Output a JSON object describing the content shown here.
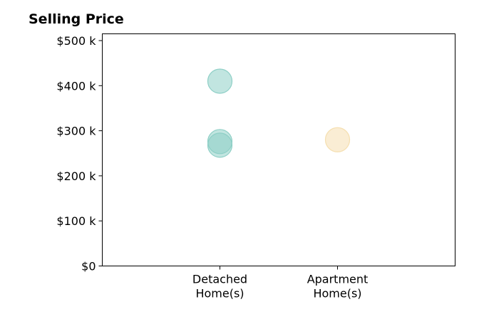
{
  "chart_data": {
    "type": "scatter",
    "title": "Selling Price",
    "categories": [
      "Detached Home(s)",
      "Apartment Home(s)"
    ],
    "category_label_lines": [
      [
        "Detached",
        "Home(s)"
      ],
      [
        "Apartment",
        "Home(s)"
      ]
    ],
    "yticks": [
      {
        "value": 0,
        "label": "$0"
      },
      {
        "value": 100000,
        "label": "$100 k"
      },
      {
        "value": 200000,
        "label": "$200 k"
      },
      {
        "value": 300000,
        "label": "$300 k"
      },
      {
        "value": 400000,
        "label": "$400 k"
      },
      {
        "value": 500000,
        "label": "$500 k"
      }
    ],
    "ylim": [
      0,
      515000
    ],
    "xlim": [
      0,
      3
    ],
    "points": [
      {
        "category": "Detached Home(s)",
        "value": 410000,
        "color": "#8ecfc6"
      },
      {
        "category": "Detached Home(s)",
        "value": 276000,
        "color": "#8ecfc6"
      },
      {
        "category": "Detached Home(s)",
        "value": 268000,
        "color": "#8ecfc6"
      },
      {
        "category": "Apartment Home(s)",
        "value": 280000,
        "color": "#f5dfb0"
      }
    ],
    "grid": false,
    "legend": "none"
  }
}
